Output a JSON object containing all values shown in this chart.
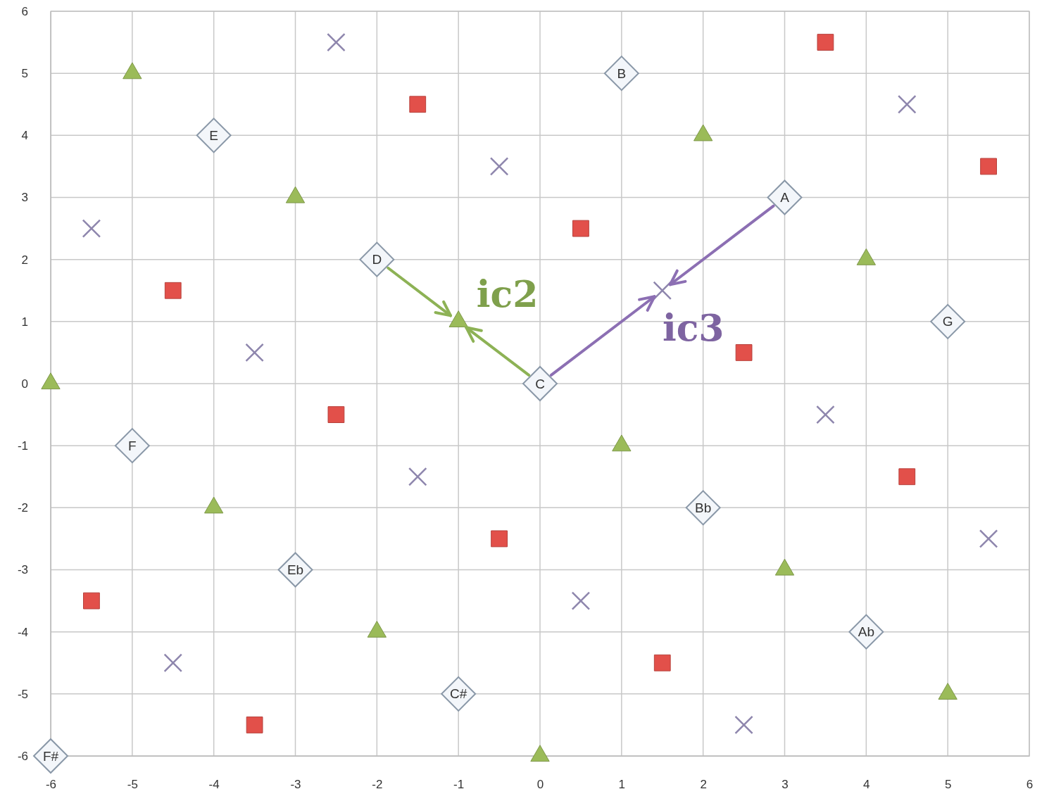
{
  "chart_data": {
    "type": "scatter",
    "xlim": [
      -6,
      6
    ],
    "ylim": [
      -6,
      6
    ],
    "xticks": [
      -6,
      -5,
      -4,
      -3,
      -2,
      -1,
      0,
      1,
      2,
      3,
      4,
      5,
      6
    ],
    "yticks": [
      -6,
      -5,
      -4,
      -3,
      -2,
      -1,
      0,
      1,
      2,
      3,
      4,
      5,
      6
    ],
    "grid": true,
    "series": [
      {
        "color": "#e2504a",
        "marker": "square",
        "x": [
          3.5,
          -1.5,
          5.5,
          0.5,
          -4.5,
          2.5,
          -2.5,
          4.5,
          -0.5,
          -5.5,
          1.5,
          -3.5
        ],
        "values": [
          5.5,
          4.5,
          3.5,
          2.5,
          1.5,
          0.5,
          -0.5,
          -1.5,
          -2.5,
          -3.5,
          -4.5,
          -5.5
        ]
      },
      {
        "color": "#9bbb59",
        "marker": "triangle",
        "x": [
          -5,
          2,
          -3,
          4,
          -1,
          -6,
          1,
          -4,
          3,
          -2,
          5,
          0
        ],
        "values": [
          5,
          4,
          3,
          2,
          1,
          0,
          -1,
          -2,
          -3,
          -4,
          -5,
          -6
        ]
      },
      {
        "color": "#8e86ad",
        "marker": "cross",
        "x": [
          -2.5,
          4.5,
          -0.5,
          -5.5,
          1.5,
          -3.5,
          3.5,
          -1.5,
          5.5,
          0.5,
          -4.5,
          2.5
        ],
        "values": [
          5.5,
          4.5,
          3.5,
          2.5,
          1.5,
          0.5,
          -0.5,
          -1.5,
          -2.5,
          -3.5,
          -4.5,
          -5.5
        ]
      },
      {
        "color": "#f3f6fa",
        "marker": "diamond",
        "x": [
          0,
          -2,
          -4,
          1,
          3,
          5,
          -5,
          2,
          -3,
          4,
          -1,
          -6
        ],
        "values": [
          0,
          2,
          4,
          5,
          3,
          1,
          -1,
          -2,
          -3,
          -4,
          -5,
          -6
        ]
      }
    ],
    "annotations": [
      {
        "text": "C",
        "x": 0,
        "y": 0
      },
      {
        "text": "D",
        "x": -2,
        "y": 2
      },
      {
        "text": "E",
        "x": -4,
        "y": 4
      },
      {
        "text": "B",
        "x": 1,
        "y": 5
      },
      {
        "text": "A",
        "x": 3,
        "y": 3
      },
      {
        "text": "G",
        "x": 5,
        "y": 1
      },
      {
        "text": "F",
        "x": -5,
        "y": -1
      },
      {
        "text": "Bb",
        "x": 2,
        "y": -2
      },
      {
        "text": "Eb",
        "x": -3,
        "y": -3
      },
      {
        "text": "Ab",
        "x": 4,
        "y": -4
      },
      {
        "text": "C#",
        "x": -1,
        "y": -5
      },
      {
        "text": "F#",
        "x": -6,
        "y": -6
      },
      {
        "text": "ic2",
        "x": -1,
        "y": 1
      },
      {
        "text": "ic3",
        "x": 1.5,
        "y": 1.5
      }
    ]
  }
}
